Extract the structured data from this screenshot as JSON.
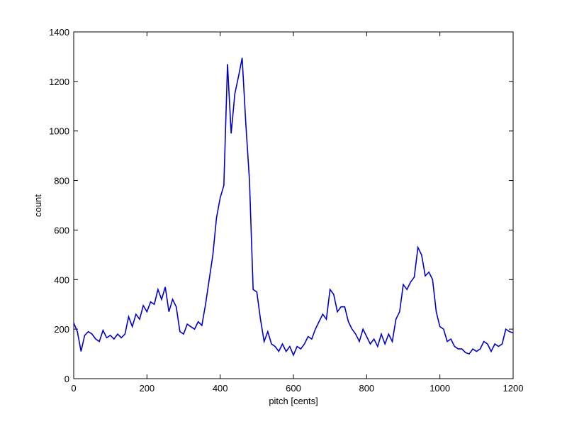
{
  "chart_data": {
    "type": "line",
    "xlabel": "pitch [cents]",
    "ylabel": "count",
    "x": [
      0,
      10,
      20,
      30,
      40,
      50,
      60,
      70,
      80,
      90,
      100,
      110,
      120,
      130,
      140,
      150,
      160,
      170,
      180,
      190,
      200,
      210,
      220,
      230,
      240,
      250,
      260,
      270,
      280,
      290,
      300,
      310,
      320,
      330,
      340,
      350,
      360,
      370,
      380,
      390,
      400,
      410,
      420,
      430,
      440,
      450,
      460,
      470,
      480,
      490,
      500,
      510,
      520,
      530,
      540,
      550,
      560,
      570,
      580,
      590,
      600,
      610,
      620,
      630,
      640,
      650,
      660,
      670,
      680,
      690,
      700,
      710,
      720,
      730,
      740,
      750,
      760,
      770,
      780,
      790,
      800,
      810,
      820,
      830,
      840,
      850,
      860,
      870,
      880,
      890,
      900,
      910,
      920,
      930,
      940,
      950,
      960,
      970,
      980,
      990,
      1000,
      1010,
      1020,
      1030,
      1040,
      1050,
      1060,
      1070,
      1080,
      1090,
      1100,
      1110,
      1120,
      1130,
      1140,
      1150,
      1160,
      1170,
      1180,
      1190,
      1200
    ],
    "series": [
      {
        "color": "#0000cc",
        "values": [
          225,
          190,
          110,
          175,
          190,
          180,
          160,
          150,
          195,
          165,
          175,
          160,
          180,
          165,
          180,
          250,
          210,
          260,
          240,
          295,
          270,
          310,
          300,
          360,
          320,
          370,
          270,
          320,
          290,
          190,
          180,
          220,
          210,
          200,
          230,
          215,
          300,
          400,
          500,
          650,
          730,
          780,
          1270,
          990,
          1150,
          1220,
          1295,
          1030,
          800,
          360,
          350,
          240,
          150,
          190,
          140,
          130,
          110,
          140,
          110,
          130,
          95,
          130,
          120,
          140,
          170,
          160,
          200,
          230,
          260,
          240,
          360,
          340,
          270,
          290,
          290,
          230,
          200,
          180,
          150,
          200,
          170,
          140,
          160,
          130,
          180,
          140,
          180,
          150,
          240,
          270,
          380,
          360,
          390,
          410,
          530,
          500,
          415,
          430,
          400,
          270,
          210,
          200,
          150,
          160,
          130,
          120,
          120,
          105,
          100,
          120,
          110,
          120,
          150,
          140,
          110,
          140,
          130,
          140,
          200,
          190,
          185
        ]
      }
    ],
    "xlim": [
      0,
      1200
    ],
    "xticks": [
      0,
      200,
      400,
      600,
      800,
      1000,
      1200
    ],
    "ylim": [
      0,
      1400
    ],
    "yticks": [
      0,
      200,
      400,
      600,
      800,
      1000,
      1200,
      1400
    ]
  }
}
